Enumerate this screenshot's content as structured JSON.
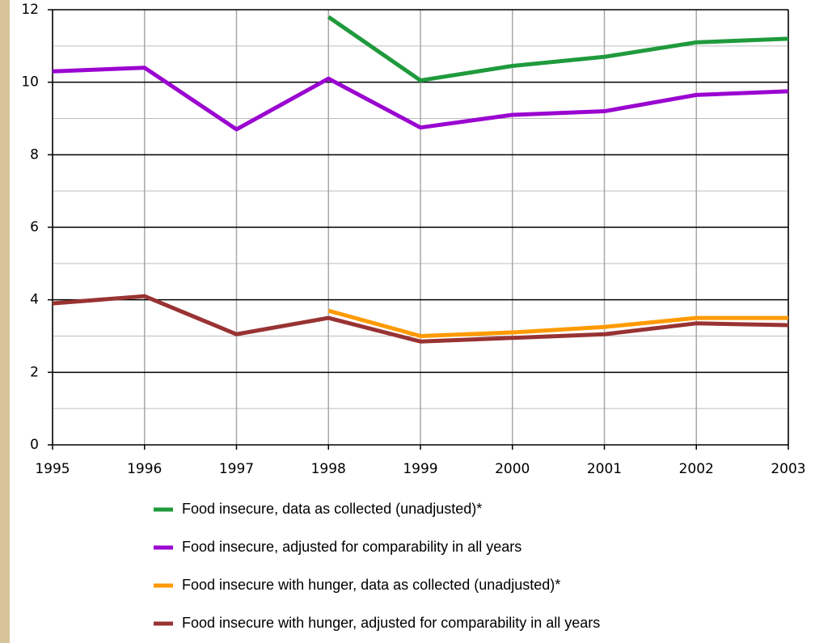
{
  "chart_data": {
    "type": "line",
    "x": [
      1995,
      1996,
      1997,
      1998,
      1999,
      2000,
      2001,
      2002,
      2003
    ],
    "xlim": [
      1995,
      2003
    ],
    "xticks": [
      1995,
      1996,
      1997,
      1998,
      1999,
      2000,
      2001,
      2002,
      2003
    ],
    "ylim": [
      0,
      12
    ],
    "yticks": [
      0,
      2,
      4,
      6,
      8,
      10,
      12
    ],
    "yminor": [
      1,
      3,
      5,
      7,
      9,
      11
    ],
    "grid": true,
    "series": [
      {
        "name": "Food insecure, data as collected (unadjusted)*",
        "color": "#1f9a3c",
        "values": [
          null,
          null,
          null,
          11.8,
          10.05,
          10.45,
          10.7,
          11.1,
          11.2
        ]
      },
      {
        "name": "Food insecure, adjusted for comparability in all years",
        "color": "#9a05d0",
        "values": [
          10.3,
          10.4,
          8.7,
          10.1,
          8.75,
          9.1,
          9.2,
          9.65,
          9.75
        ]
      },
      {
        "name": "Food insecure with hunger, data as collected (unadjusted)*",
        "color": "#ff9a00",
        "values": [
          null,
          null,
          null,
          3.7,
          3.0,
          3.1,
          3.25,
          3.5,
          3.5
        ]
      },
      {
        "name": "Food insecure with hunger, adjusted for comparability in all years",
        "color": "#993333",
        "values": [
          3.9,
          4.1,
          3.05,
          3.5,
          2.85,
          2.95,
          3.05,
          3.35,
          3.3
        ]
      }
    ]
  }
}
